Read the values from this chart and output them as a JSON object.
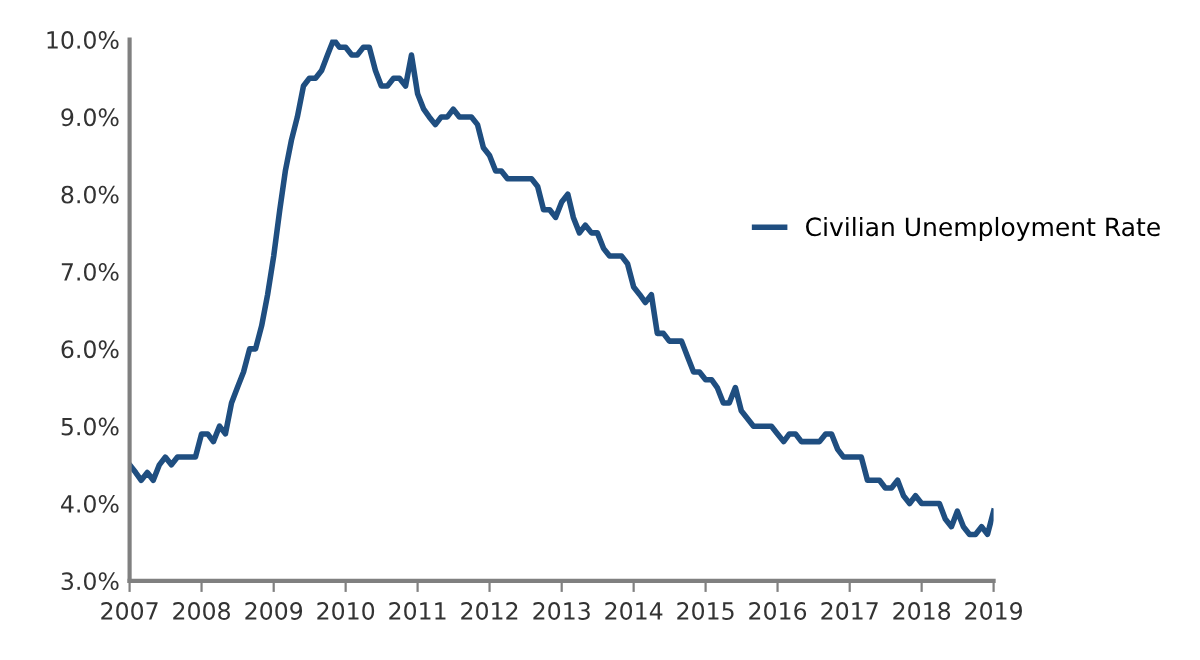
{
  "chart_data": {
    "type": "line",
    "legend": "right",
    "grid": false,
    "marker": "none",
    "line_style": "solid",
    "xlim": [
      "2007-01",
      "2019-01"
    ],
    "xticks": [
      {
        "value": "2007-01",
        "label": "2007"
      },
      {
        "value": "2008-01",
        "label": "2008"
      },
      {
        "value": "2009-01",
        "label": "2009"
      },
      {
        "value": "2010-01",
        "label": "2010"
      },
      {
        "value": "2011-01",
        "label": "2011"
      },
      {
        "value": "2012-01",
        "label": "2012"
      },
      {
        "value": "2013-01",
        "label": "2013"
      },
      {
        "value": "2014-01",
        "label": "2014"
      },
      {
        "value": "2015-01",
        "label": "2015"
      },
      {
        "value": "2016-01",
        "label": "2016"
      },
      {
        "value": "2017-01",
        "label": "2017"
      },
      {
        "value": "2018-01",
        "label": "2018"
      },
      {
        "value": "2019-01",
        "label": "2019"
      }
    ],
    "ylim": [
      3,
      10
    ],
    "yticks": [
      {
        "value": 3,
        "label": "3.0%"
      },
      {
        "value": 4,
        "label": "4.0%"
      },
      {
        "value": 5,
        "label": "5.0%"
      },
      {
        "value": 6,
        "label": "6.0%"
      },
      {
        "value": 7,
        "label": "7.0%"
      },
      {
        "value": 8,
        "label": "8.0%"
      },
      {
        "value": 9,
        "label": "9.0%"
      },
      {
        "value": 10,
        "label": "10.0%"
      }
    ],
    "series": [
      {
        "name": "Civilian Unemployment Rate",
        "color": "#1f4e80",
        "x": [
          "2007-01",
          "2007-02",
          "2007-03",
          "2007-04",
          "2007-05",
          "2007-06",
          "2007-07",
          "2007-08",
          "2007-09",
          "2007-10",
          "2007-11",
          "2007-12",
          "2008-01",
          "2008-02",
          "2008-03",
          "2008-04",
          "2008-05",
          "2008-06",
          "2008-07",
          "2008-08",
          "2008-09",
          "2008-10",
          "2008-11",
          "2008-12",
          "2009-01",
          "2009-02",
          "2009-03",
          "2009-04",
          "2009-05",
          "2009-06",
          "2009-07",
          "2009-08",
          "2009-09",
          "2009-10",
          "2009-11",
          "2009-12",
          "2010-01",
          "2010-02",
          "2010-03",
          "2010-04",
          "2010-05",
          "2010-06",
          "2010-07",
          "2010-08",
          "2010-09",
          "2010-10",
          "2010-11",
          "2010-12",
          "2011-01",
          "2011-02",
          "2011-03",
          "2011-04",
          "2011-05",
          "2011-06",
          "2011-07",
          "2011-08",
          "2011-09",
          "2011-10",
          "2011-11",
          "2011-12",
          "2012-01",
          "2012-02",
          "2012-03",
          "2012-04",
          "2012-05",
          "2012-06",
          "2012-07",
          "2012-08",
          "2012-09",
          "2012-10",
          "2012-11",
          "2012-12",
          "2013-01",
          "2013-02",
          "2013-03",
          "2013-04",
          "2013-05",
          "2013-06",
          "2013-07",
          "2013-08",
          "2013-09",
          "2013-10",
          "2013-11",
          "2013-12",
          "2014-01",
          "2014-02",
          "2014-03",
          "2014-04",
          "2014-05",
          "2014-06",
          "2014-07",
          "2014-08",
          "2014-09",
          "2014-10",
          "2014-11",
          "2014-12",
          "2015-01",
          "2015-02",
          "2015-03",
          "2015-04",
          "2015-05",
          "2015-06",
          "2015-07",
          "2015-08",
          "2015-09",
          "2015-10",
          "2015-11",
          "2015-12",
          "2016-01",
          "2016-02",
          "2016-03",
          "2016-04",
          "2016-05",
          "2016-06",
          "2016-07",
          "2016-08",
          "2016-09",
          "2016-10",
          "2016-11",
          "2016-12",
          "2017-01",
          "2017-02",
          "2017-03",
          "2017-04",
          "2017-05",
          "2017-06",
          "2017-07",
          "2017-08",
          "2017-09",
          "2017-10",
          "2017-11",
          "2017-12",
          "2018-01",
          "2018-02",
          "2018-03",
          "2018-04",
          "2018-05",
          "2018-06",
          "2018-07",
          "2018-08",
          "2018-09",
          "2018-10",
          "2018-11",
          "2018-12",
          "2019-01"
        ],
        "values": [
          4.5,
          4.4,
          4.3,
          4.4,
          4.3,
          4.5,
          4.6,
          4.5,
          4.6,
          4.6,
          4.6,
          4.6,
          4.9,
          4.9,
          4.8,
          5.0,
          4.9,
          5.3,
          5.5,
          5.7,
          6.0,
          6.0,
          6.3,
          6.7,
          7.2,
          7.8,
          8.3,
          8.7,
          9.0,
          9.4,
          9.5,
          9.5,
          9.6,
          9.8,
          10.0,
          9.9,
          9.9,
          9.8,
          9.8,
          9.9,
          9.9,
          9.6,
          9.4,
          9.4,
          9.5,
          9.5,
          9.4,
          9.8,
          9.3,
          9.1,
          9.0,
          8.9,
          9.0,
          9.0,
          9.1,
          9.0,
          9.0,
          9.0,
          8.9,
          8.6,
          8.5,
          8.3,
          8.3,
          8.2,
          8.2,
          8.2,
          8.2,
          8.2,
          8.1,
          7.8,
          7.8,
          7.7,
          7.9,
          8.0,
          7.7,
          7.5,
          7.6,
          7.5,
          7.5,
          7.3,
          7.2,
          7.2,
          7.2,
          7.1,
          6.8,
          6.7,
          6.6,
          6.7,
          6.2,
          6.2,
          6.1,
          6.1,
          6.1,
          5.9,
          5.7,
          5.7,
          5.6,
          5.6,
          5.5,
          5.3,
          5.3,
          5.5,
          5.2,
          5.1,
          5.0,
          5.0,
          5.0,
          5.0,
          4.9,
          4.8,
          4.9,
          4.9,
          4.8,
          4.8,
          4.8,
          4.8,
          4.9,
          4.9,
          4.7,
          4.6,
          4.6,
          4.6,
          4.6,
          4.3,
          4.3,
          4.3,
          4.2,
          4.2,
          4.3,
          4.1,
          4.0,
          4.1,
          4.0,
          4.0,
          4.0,
          4.0,
          3.8,
          3.7,
          3.9,
          3.7,
          3.6,
          3.6,
          3.7,
          3.6,
          3.9
        ]
      }
    ]
  }
}
